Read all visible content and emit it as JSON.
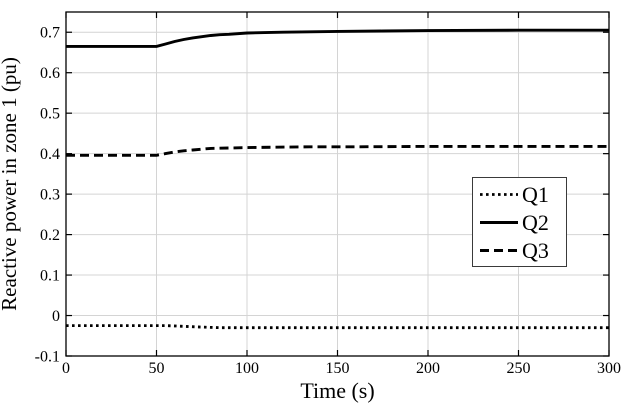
{
  "chart_data": {
    "type": "line",
    "title": "",
    "xlabel": "Time (s)",
    "ylabel": "Reactive power in zone 1 (pu)",
    "xlim": [
      0,
      300
    ],
    "ylim": [
      -0.1,
      0.75
    ],
    "x_ticks": [
      0,
      50,
      100,
      150,
      200,
      250,
      300
    ],
    "x_tick_labels": [
      "0",
      "50",
      "100",
      "150",
      "200",
      "250",
      "300"
    ],
    "y_ticks": [
      0.7,
      0.6,
      0.5,
      0.4,
      0.3,
      0.2,
      0.1,
      0,
      -0.1
    ],
    "y_tick_labels": [
      "0.7",
      "0.6",
      "0.5",
      "0.4",
      "0.3",
      "0.2",
      "0.1",
      "0",
      "-0.1"
    ],
    "grid": true,
    "grid_color": "#d4d4d4",
    "axis_color": "#000000",
    "background_color": "#ffffff",
    "legend": {
      "position": "inside-lower-right",
      "border_color": "#3a3a3a",
      "background": "#ffffff"
    },
    "series": [
      {
        "name": "Q1",
        "style": "dotted",
        "color": "#000000",
        "width": 2.8,
        "dash": "2.6 3.4",
        "points": [
          [
            0,
            -0.025
          ],
          [
            55,
            -0.025
          ],
          [
            62,
            -0.026
          ],
          [
            72,
            -0.028
          ],
          [
            85,
            -0.03
          ],
          [
            300,
            -0.03
          ]
        ]
      },
      {
        "name": "Q2",
        "style": "solid",
        "color": "#000000",
        "width": 2.9,
        "dash": "",
        "points": [
          [
            0,
            0.665
          ],
          [
            50,
            0.665
          ],
          [
            55,
            0.671
          ],
          [
            60,
            0.677
          ],
          [
            65,
            0.682
          ],
          [
            70,
            0.686
          ],
          [
            75,
            0.689
          ],
          [
            80,
            0.692
          ],
          [
            85,
            0.694
          ],
          [
            90,
            0.695
          ],
          [
            100,
            0.698
          ],
          [
            110,
            0.699
          ],
          [
            120,
            0.7
          ],
          [
            135,
            0.701
          ],
          [
            150,
            0.702
          ],
          [
            175,
            0.703
          ],
          [
            200,
            0.704
          ],
          [
            250,
            0.705
          ],
          [
            300,
            0.705
          ]
        ]
      },
      {
        "name": "Q3",
        "style": "dashed",
        "color": "#000000",
        "width": 2.9,
        "dash": "9 5",
        "points": [
          [
            0,
            0.396
          ],
          [
            50,
            0.396
          ],
          [
            55,
            0.4
          ],
          [
            60,
            0.404
          ],
          [
            65,
            0.407
          ],
          [
            70,
            0.409
          ],
          [
            75,
            0.411
          ],
          [
            80,
            0.413
          ],
          [
            90,
            0.414
          ],
          [
            100,
            0.415
          ],
          [
            115,
            0.416
          ],
          [
            135,
            0.417
          ],
          [
            160,
            0.417
          ],
          [
            200,
            0.418
          ],
          [
            250,
            0.418
          ],
          [
            300,
            0.418
          ]
        ]
      }
    ]
  }
}
